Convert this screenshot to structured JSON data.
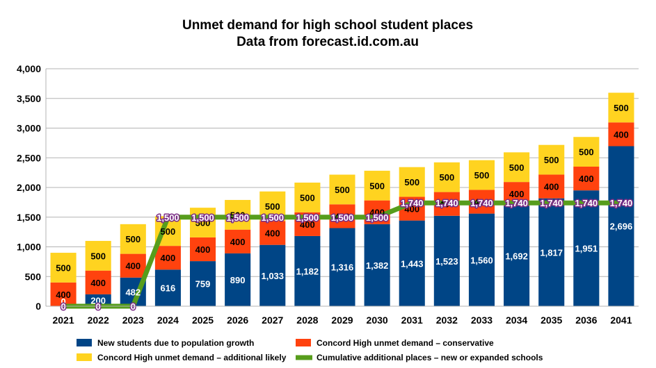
{
  "chart_data": {
    "type": "bar",
    "title": "Unmet demand for high school student places",
    "subtitle": "Data from forecast.id.com.au",
    "categories": [
      "2021",
      "2022",
      "2023",
      "2024",
      "2025",
      "2026",
      "2027",
      "2028",
      "2029",
      "2030",
      "2031",
      "2032",
      "2033",
      "2034",
      "2035",
      "2036",
      "2041"
    ],
    "ylim": [
      0,
      4000
    ],
    "yticks": [
      0,
      500,
      1000,
      1500,
      2000,
      2500,
      3000,
      3500,
      4000
    ],
    "ytick_labels": [
      "0",
      "500",
      "1,000",
      "1,500",
      "2,000",
      "2,500",
      "3,000",
      "3,500",
      "4,000"
    ],
    "grid": true,
    "legend_position": "bottom",
    "stacked": true,
    "series": [
      {
        "name": "New students due to population growth",
        "type": "bar",
        "color": "#004586",
        "label_color": "#ffffff",
        "values": [
          0,
          200,
          482,
          616,
          759,
          890,
          1033,
          1182,
          1316,
          1382,
          1443,
          1523,
          1560,
          1692,
          1817,
          1951,
          2696
        ],
        "labels": [
          "0",
          "200",
          "482",
          "616",
          "759",
          "890",
          "1,033",
          "1,182",
          "1,316",
          "1,382",
          "1,443",
          "1,523",
          "1,560",
          "1,692",
          "1,817",
          "1,951",
          "2,696"
        ]
      },
      {
        "name": "Concord High unmet demand – conservative",
        "type": "bar",
        "color": "#ff420e",
        "label_color": "#000000",
        "values": [
          400,
          400,
          400,
          400,
          400,
          400,
          400,
          400,
          400,
          400,
          400,
          400,
          400,
          400,
          400,
          400,
          400
        ],
        "labels": [
          "400",
          "400",
          "400",
          "400",
          "400",
          "400",
          "400",
          "400",
          "400",
          "400",
          "400",
          "400",
          "400",
          "400",
          "400",
          "400",
          "400"
        ]
      },
      {
        "name": "Concord High unmet demand – additional likely",
        "type": "bar",
        "color": "#ffd320",
        "label_color": "#000000",
        "values": [
          500,
          500,
          500,
          500,
          500,
          500,
          500,
          500,
          500,
          500,
          500,
          500,
          500,
          500,
          500,
          500,
          500
        ],
        "labels": [
          "500",
          "500",
          "500",
          "500",
          "500",
          "500",
          "500",
          "500",
          "500",
          "500",
          "500",
          "500",
          "500",
          "500",
          "500",
          "500",
          "500"
        ]
      },
      {
        "name": "Cumulative additional places – new or expanded schools",
        "type": "line",
        "color": "#579d1c",
        "label_color": "#ffffff",
        "values": [
          0,
          0,
          0,
          1500,
          1500,
          1500,
          1500,
          1500,
          1500,
          1500,
          1740,
          1740,
          1740,
          1740,
          1740,
          1740,
          1740
        ],
        "labels": [
          "0",
          "0",
          "0",
          "1,500",
          "1,500",
          "1,500",
          "1,500",
          "1,500",
          "1,500",
          "1,500",
          "1,740",
          "1,740",
          "1,740",
          "1,740",
          "1,740",
          "1,740",
          "1,740"
        ]
      }
    ]
  }
}
